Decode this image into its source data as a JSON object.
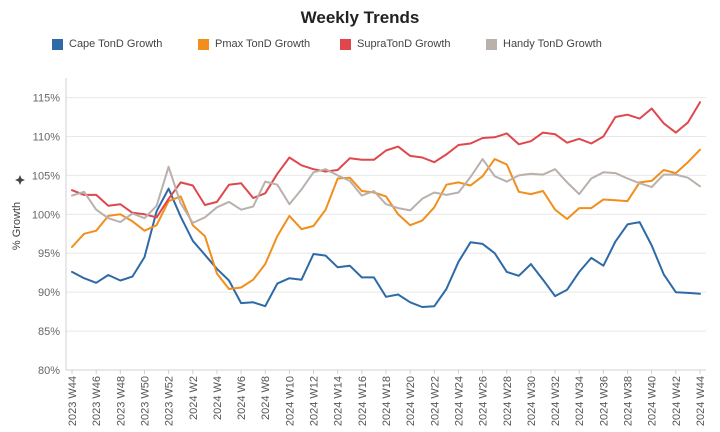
{
  "chart_data": {
    "type": "line",
    "title": "Weekly Trends",
    "ylabel": "% Growth",
    "ylabel_icon": "sparkle-icon",
    "xlabel": "",
    "ylim": [
      80,
      117
    ],
    "yticks": [
      "80%",
      "85%",
      "90%",
      "95%",
      "100%",
      "105%",
      "110%",
      "115%"
    ],
    "ytick_values": [
      80,
      85,
      90,
      95,
      100,
      105,
      110,
      115
    ],
    "grid": "horizontal",
    "legend_position": "top",
    "x": [
      "2023 W44",
      "2023 W45",
      "2023 W46",
      "2023 W47",
      "2023 W48",
      "2023 W49",
      "2023 W50",
      "2023 W51",
      "2023 W52",
      "2024 W1",
      "2024 W2",
      "2024 W3",
      "2024 W4",
      "2024 W5",
      "2024 W6",
      "2024 W7",
      "2024 W8",
      "2024 W9",
      "2024 W10",
      "2024 W11",
      "2024 W12",
      "2024 W13",
      "2024 W14",
      "2024 W15",
      "2024 W16",
      "2024 W17",
      "2024 W18",
      "2024 W19",
      "2024 W20",
      "2024 W21",
      "2024 W22",
      "2024 W23",
      "2024 W24",
      "2024 W25",
      "2024 W26",
      "2024 W27",
      "2024 W28",
      "2024 W29",
      "2024 W30",
      "2024 W31",
      "2024 W32",
      "2024 W33",
      "2024 W34",
      "2024 W35",
      "2024 W36",
      "2024 W37",
      "2024 W38",
      "2024 W39",
      "2024 W40",
      "2024 W41",
      "2024 W42",
      "2024 W43",
      "2024 W44"
    ],
    "xtick_labels": [
      "2023 W44",
      "2023 W46",
      "2023 W48",
      "2023 W50",
      "2023 W52",
      "2024 W2",
      "2024 W4",
      "2024 W6",
      "2024 W8",
      "2024 W10",
      "2024 W12",
      "2024 W14",
      "2024 W16",
      "2024 W18",
      "2024 W20",
      "2024 W22",
      "2024 W24",
      "2024 W26",
      "2024 W28",
      "2024 W30",
      "2024 W32",
      "2024 W34",
      "2024 W36",
      "2024 W38",
      "2024 W40",
      "2024 W42",
      "2024 W44"
    ],
    "series": [
      {
        "name": "Cape TonD Growth",
        "color": "#2e6aa6",
        "values": [
          92.6,
          91.8,
          91.2,
          92.2,
          91.5,
          92.0,
          94.5,
          100.4,
          103.3,
          99.7,
          96.6,
          94.8,
          93.0,
          91.5,
          88.6,
          88.7,
          88.2,
          91.1,
          91.8,
          91.6,
          94.9,
          94.7,
          93.2,
          93.4,
          91.9,
          91.9,
          89.4,
          89.7,
          88.7,
          88.1,
          88.2,
          90.4,
          93.9,
          96.4,
          96.2,
          95.0,
          92.6,
          92.1,
          93.6,
          91.6,
          89.5,
          90.3,
          92.6,
          94.4,
          93.4,
          96.5,
          98.7,
          99.0,
          96.0,
          92.3,
          90.0,
          89.9,
          89.8
        ]
      },
      {
        "name": "Pmax TonD Growth",
        "color": "#f28e1c",
        "values": [
          95.8,
          97.5,
          97.9,
          99.8,
          100.0,
          99.1,
          97.9,
          98.6,
          101.7,
          102.3,
          98.6,
          97.2,
          92.4,
          90.4,
          90.6,
          91.6,
          93.6,
          97.2,
          99.8,
          98.1,
          98.5,
          100.6,
          104.6,
          104.7,
          103.0,
          102.8,
          102.3,
          100.0,
          98.6,
          99.2,
          100.9,
          103.8,
          104.1,
          103.7,
          104.9,
          107.1,
          106.4,
          102.9,
          102.6,
          103.0,
          100.6,
          99.4,
          100.8,
          100.8,
          101.9,
          101.8,
          101.7,
          104.1,
          104.3,
          105.7,
          105.3,
          106.7,
          108.3
        ]
      },
      {
        "name": "SupraTonD Growth",
        "color": "#e0474c",
        "values": [
          103.1,
          102.5,
          102.5,
          101.1,
          101.3,
          100.2,
          100.0,
          99.6,
          102.0,
          104.1,
          103.7,
          101.2,
          101.6,
          103.8,
          104.0,
          102.1,
          102.7,
          105.2,
          107.3,
          106.3,
          105.8,
          105.5,
          105.7,
          107.2,
          107.0,
          107.0,
          108.2,
          108.7,
          107.5,
          107.3,
          106.7,
          107.7,
          108.9,
          109.1,
          109.8,
          109.9,
          110.4,
          109.0,
          109.4,
          110.5,
          110.3,
          109.2,
          109.7,
          109.1,
          110.0,
          112.5,
          112.8,
          112.3,
          113.6,
          111.7,
          110.5,
          111.8,
          114.4
        ]
      },
      {
        "name": "Handy TonD Growth",
        "color": "#bab0ac",
        "values": [
          102.4,
          102.9,
          100.6,
          99.5,
          99.0,
          100.1,
          99.5,
          101.1,
          106.1,
          101.4,
          98.9,
          99.6,
          100.9,
          101.6,
          100.6,
          101.0,
          104.2,
          103.8,
          101.3,
          103.2,
          105.4,
          105.8,
          105.0,
          104.3,
          102.4,
          103.0,
          101.3,
          100.8,
          100.5,
          102.0,
          102.8,
          102.5,
          102.8,
          104.8,
          107.1,
          104.9,
          104.2,
          105.0,
          105.2,
          105.1,
          105.8,
          104.1,
          102.6,
          104.6,
          105.4,
          105.3,
          104.6,
          104.0,
          103.5,
          105.1,
          105.1,
          104.7,
          103.6
        ]
      }
    ]
  }
}
